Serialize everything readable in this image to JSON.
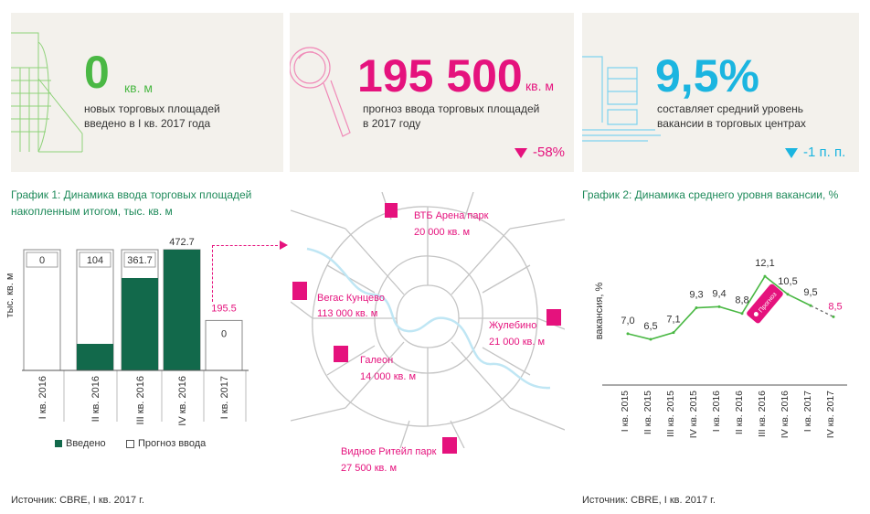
{
  "colors": {
    "green": "#12694b",
    "bright_green": "#4ab844",
    "magenta": "#e5127d",
    "cyan": "#1bb5e0",
    "gray_card": "#f3f1ec"
  },
  "kpi": [
    {
      "value": "0",
      "unit": "кв. м",
      "line1": "новых торговых площадей",
      "line2": "введено в I кв. 2017 года",
      "icon": "building-outline-icon"
    },
    {
      "value": "195 500",
      "unit": "кв. м",
      "line1": "прогноз ввода торговых площадей",
      "line2": "в 2017 году",
      "delta": "-58%",
      "icon": "magnifier-icon"
    },
    {
      "value": "9,5%",
      "unit": "",
      "line1": "составляет средний уровень",
      "line2": "вакансии в торговых центрах",
      "delta": "-1 п. п.",
      "icon": "shelves-icon"
    }
  ],
  "chart1": {
    "title_line1": "График 1: Динамика ввода торговых площадей",
    "title_line2": "накопленным итогом, тыс. кв. м",
    "ylabel": "тыс. кв. м",
    "legend": {
      "built": "Введено",
      "forecast": "Прогноз ввода"
    },
    "forecast_2017_label": "195.5",
    "source": "Источник: CBRE, I кв. 2017 г."
  },
  "map": {
    "malls": [
      {
        "name": "ВТБ Арена парк",
        "area": "20 000 кв. м"
      },
      {
        "name": "Вегас Кунцево",
        "area": "113 000 кв. м"
      },
      {
        "name": "Жулебино",
        "area": "21 000 кв. м"
      },
      {
        "name": "Галеон",
        "area": "14 000 кв. м"
      },
      {
        "name": "Видное Ритейл парк",
        "area": "27 500 кв. м"
      }
    ]
  },
  "chart2": {
    "title": "График 2: Динамика среднего уровня вакансии, %",
    "ylabel": "вакансия, %",
    "source": "Источник: CBRE, I кв. 2017 г."
  },
  "chart_data": [
    {
      "type": "bar",
      "title": "График 1: Динамика ввода торговых площадей накопленным итогом, тыс. кв. м",
      "ylabel": "тыс. кв. м",
      "categories": [
        "I кв. 2016",
        "II кв. 2016",
        "III кв. 2016",
        "IV кв. 2016",
        "I кв. 2017"
      ],
      "series": [
        {
          "name": "Введено",
          "values": [
            0,
            104,
            361.7,
            472.7,
            0
          ]
        },
        {
          "name": "Прогноз ввода",
          "values": [
            0,
            0,
            0,
            0,
            195.5
          ]
        }
      ],
      "labels": [
        "0",
        "104",
        "361.7",
        "472.7",
        "0"
      ],
      "ylim": [
        0,
        472.7
      ]
    },
    {
      "type": "line",
      "title": "График 2: Динамика среднего уровня вакансии, %",
      "ylabel": "вакансия, %",
      "categories": [
        "I кв. 2015",
        "II кв. 2015",
        "III кв. 2015",
        "IV кв. 2015",
        "I кв. 2016",
        "II кв. 2016",
        "III кв. 2016",
        "IV кв. 2016",
        "I кв. 2017",
        "IV кв. 2017"
      ],
      "values": [
        7.0,
        6.5,
        7.1,
        9.3,
        9.4,
        8.8,
        12.1,
        10.5,
        9.5,
        8.5
      ],
      "labels": [
        "7,0",
        "6,5",
        "7,1",
        "9,3",
        "9,4",
        "8,8",
        "12,1",
        "10,5",
        "9,5",
        "8,5"
      ],
      "forecast_index": 9,
      "callout": "Прогноз"
    }
  ]
}
